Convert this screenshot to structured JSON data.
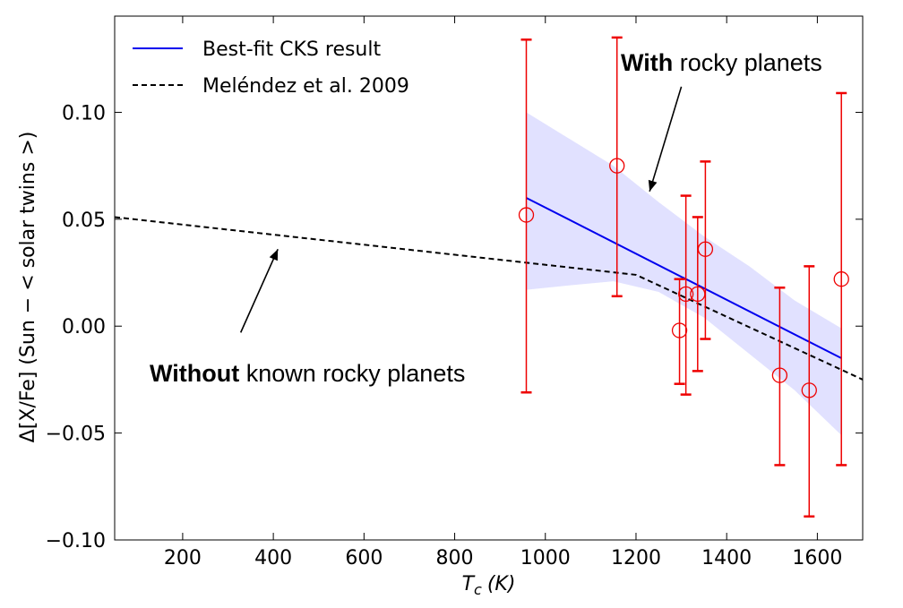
{
  "chart_data": {
    "type": "scatter",
    "xlabel": "T",
    "xlabel_sub": "c",
    "xlabel_unit": "(K)",
    "ylabel": "Δ[X/Fe] (Sun − < solar twins >)",
    "xlim": [
      50,
      1700
    ],
    "ylim": [
      -0.1,
      0.145
    ],
    "xticks": [
      200,
      400,
      600,
      800,
      1000,
      1200,
      1400,
      1600
    ],
    "xtick_labels": [
      "200",
      "400",
      "600",
      "800",
      "1000",
      "1200",
      "1400",
      "1600"
    ],
    "yticks": [
      -0.1,
      -0.05,
      0.0,
      0.05,
      0.1
    ],
    "ytick_labels": [
      "−0.10",
      "−0.05",
      "0.00",
      "0.05",
      "0.10"
    ],
    "grid": false,
    "legend_position": "top-left",
    "series": [
      {
        "name": "Best-fit CKS result",
        "kind": "line",
        "color": "#0000ee",
        "x": [
          958,
          1653
        ],
        "y": [
          0.06,
          -0.015
        ]
      },
      {
        "name": "Meléndez et al. 2009",
        "kind": "dashed-line",
        "color": "#000000",
        "x": [
          50,
          1200,
          1700
        ],
        "y": [
          0.051,
          0.024,
          -0.025
        ]
      },
      {
        "name": "",
        "kind": "scatter-errorbar",
        "color": "#ee0000",
        "points": [
          {
            "x": 958,
            "y": 0.052,
            "lo": -0.031,
            "hi": 0.134
          },
          {
            "x": 1158,
            "y": 0.075,
            "lo": 0.014,
            "hi": 0.135
          },
          {
            "x": 1296,
            "y": -0.002,
            "lo": -0.027,
            "hi": 0.022
          },
          {
            "x": 1310,
            "y": 0.015,
            "lo": -0.032,
            "hi": 0.061
          },
          {
            "x": 1336,
            "y": 0.015,
            "lo": -0.021,
            "hi": 0.051
          },
          {
            "x": 1353,
            "y": 0.036,
            "lo": -0.006,
            "hi": 0.077
          },
          {
            "x": 1517,
            "y": -0.023,
            "lo": -0.065,
            "hi": 0.018
          },
          {
            "x": 1582,
            "y": -0.03,
            "lo": -0.089,
            "hi": 0.028
          },
          {
            "x": 1653,
            "y": 0.022,
            "lo": -0.065,
            "hi": 0.109
          }
        ]
      }
    ],
    "band": {
      "color": "#c8c8ff",
      "x": [
        958,
        1050,
        1150,
        1250,
        1350,
        1450,
        1550,
        1653
      ],
      "upper": [
        0.1,
        0.088,
        0.075,
        0.058,
        0.042,
        0.028,
        0.012,
        -0.001
      ],
      "lower": [
        0.017,
        0.019,
        0.021,
        0.016,
        0.004,
        -0.013,
        -0.03,
        -0.051
      ]
    },
    "annotations": [
      {
        "bold": "With",
        "rest": " rocky planets",
        "arrow_from": [
          1300,
          0.112
        ],
        "arrow_to": [
          1230,
          0.063
        ]
      },
      {
        "bold": "Without",
        "rest": " known rocky planets",
        "arrow_from": [
          328,
          -0.003
        ],
        "arrow_to": [
          410,
          0.036
        ]
      }
    ]
  }
}
